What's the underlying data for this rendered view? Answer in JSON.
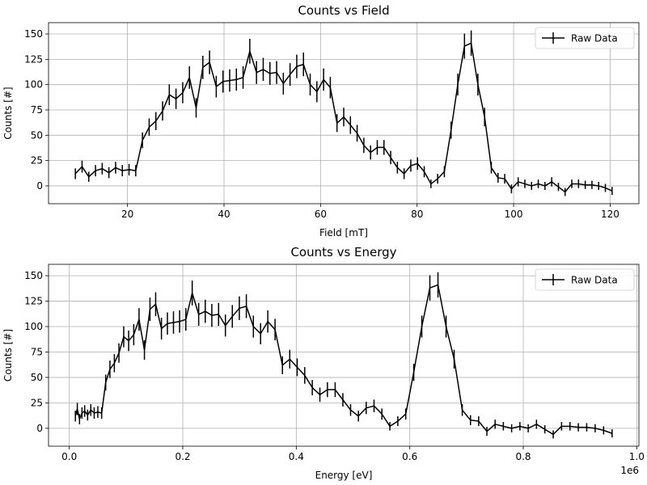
{
  "chart_data": [
    {
      "type": "errorbar",
      "title": "Counts vs Field",
      "xlabel": "Field [mT]",
      "ylabel": "Counts [#]",
      "x": [
        9.2,
        10.59,
        11.98,
        13.37,
        14.76,
        16.15,
        17.54,
        18.93,
        20.32,
        21.71,
        23.1,
        24.49,
        25.88,
        27.27,
        28.66,
        30.05,
        31.44,
        32.83,
        34.22,
        35.61,
        37.0,
        38.39,
        39.78,
        41.17,
        42.56,
        43.95,
        45.34,
        46.73,
        48.12,
        49.51,
        50.9,
        52.29,
        53.68,
        55.07,
        56.46,
        57.85,
        59.24,
        60.63,
        62.02,
        63.41,
        64.8,
        66.19,
        67.58,
        68.97,
        70.36,
        71.75,
        73.14,
        74.53,
        75.92,
        77.31,
        78.7,
        80.09,
        81.48,
        82.87,
        84.26,
        85.65,
        87.04,
        88.43,
        89.82,
        91.21,
        92.6,
        93.99,
        95.38,
        96.77,
        98.16,
        99.55,
        100.94,
        102.33,
        103.72,
        105.11,
        106.5,
        107.89,
        109.28,
        110.67,
        112.06,
        113.45,
        114.84,
        116.23,
        117.62,
        119.01,
        120.4
      ],
      "series": [
        {
          "name": "Raw Data",
          "color": "#000000",
          "values": [
            12,
            19,
            9,
            15,
            17,
            13,
            18,
            15,
            16,
            15,
            45,
            58,
            64,
            74,
            90,
            86,
            92,
            107,
            77,
            117,
            122,
            98,
            103,
            104,
            105,
            107,
            133,
            112,
            115,
            111,
            112,
            101,
            110,
            118,
            120,
            100,
            93,
            105,
            97,
            62,
            68,
            60,
            52,
            40,
            33,
            38,
            38,
            28,
            18,
            12,
            20,
            22,
            14,
            2,
            7,
            14,
            55,
            100,
            138,
            141,
            100,
            68,
            18,
            8,
            7,
            -3,
            4,
            2,
            0,
            2,
            0,
            4,
            -1,
            -6,
            2,
            2,
            1,
            1,
            0,
            -2,
            -5
          ],
          "errors": [
            5.3,
            5.9,
            5,
            5.6,
            5.7,
            5.4,
            5.8,
            5.6,
            5.7,
            5.6,
            7.8,
            8.6,
            8.9,
            9.5,
            10.3,
            10.1,
            10.4,
            11.1,
            9.6,
            11.5,
            11.7,
            10.7,
            10.9,
            11,
            11,
            11.1,
            12.2,
            11.3,
            11.4,
            11.3,
            11.3,
            10.8,
            11.2,
            11.6,
            11.7,
            10.8,
            10.4,
            11,
            10.6,
            8.8,
            9.2,
            8.7,
            8.2,
            7.5,
            7,
            7.3,
            7.3,
            6.6,
            5.8,
            5.3,
            6,
            6.2,
            5.5,
            4.2,
            4.8,
            5.5,
            8.4,
            10.8,
            12.4,
            12.5,
            10.8,
            9.2,
            5.8,
            4.9,
            4.8,
            4.4,
            4.5,
            4.2,
            4,
            4.2,
            4,
            4.5,
            4.1,
            4,
            4.2,
            4.2,
            4.1,
            4.1,
            4,
            4,
            4
          ]
        }
      ],
      "xlim": [
        3.64,
        125.96
      ],
      "xticks": [
        20,
        40,
        60,
        80,
        100,
        120
      ],
      "ylim": [
        -17.6,
        161.2
      ],
      "yticks": [
        0,
        25,
        50,
        75,
        100,
        125,
        150
      ],
      "grid": true,
      "legend": "upper right"
    },
    {
      "type": "errorbar",
      "title": "Counts vs Energy",
      "xlabel": "Energy [eV]",
      "ylabel": "Counts [#]",
      "x_offset_text": "1e6",
      "x": [
        10700,
        14130,
        18020,
        22350,
        27110,
        32300,
        37890,
        43890,
        50270,
        57020,
        64140,
        71590,
        79380,
        87490,
        95900,
        104600,
        113600,
        122900,
        132400,
        142200,
        152200,
        162400,
        172900,
        183600,
        194400,
        205400,
        216600,
        228000,
        239600,
        251200,
        263100,
        275100,
        287300,
        299600,
        312000,
        324400,
        337100,
        349800,
        362600,
        375600,
        388500,
        401600,
        414900,
        428200,
        441600,
        454900,
        468500,
        482100,
        495700,
        509500,
        523200,
        537000,
        550900,
        564900,
        578900,
        592900,
        607000,
        621200,
        635400,
        649700,
        664000,
        678200,
        692500,
        707000,
        721400,
        735900,
        750400,
        764900,
        779500,
        794100,
        808700,
        823300,
        838000,
        852800,
        867500,
        882300,
        897000,
        911800,
        926700,
        941600,
        956500
      ],
      "series": [
        {
          "name": "Raw Data",
          "color": "#000000",
          "values": [
            12,
            19,
            9,
            15,
            17,
            13,
            18,
            15,
            16,
            15,
            45,
            58,
            64,
            74,
            90,
            86,
            92,
            107,
            77,
            117,
            122,
            98,
            103,
            104,
            105,
            107,
            133,
            112,
            115,
            111,
            112,
            101,
            110,
            118,
            120,
            100,
            93,
            105,
            97,
            62,
            68,
            60,
            52,
            40,
            33,
            38,
            38,
            28,
            18,
            12,
            20,
            22,
            14,
            2,
            7,
            14,
            55,
            100,
            138,
            141,
            100,
            68,
            18,
            8,
            7,
            -3,
            4,
            2,
            0,
            2,
            0,
            4,
            -1,
            -6,
            2,
            2,
            1,
            1,
            0,
            -2,
            -5
          ],
          "errors": [
            5.3,
            5.9,
            5,
            5.6,
            5.7,
            5.4,
            5.8,
            5.6,
            5.7,
            5.6,
            7.8,
            8.6,
            8.9,
            9.5,
            10.3,
            10.1,
            10.4,
            11.1,
            9.6,
            11.5,
            11.7,
            10.7,
            10.9,
            11,
            11,
            11.1,
            12.2,
            11.3,
            11.4,
            11.3,
            11.3,
            10.8,
            11.2,
            11.6,
            11.7,
            10.8,
            10.4,
            11,
            10.6,
            8.8,
            9.2,
            8.7,
            8.2,
            7.5,
            7,
            7.3,
            7.3,
            6.6,
            5.8,
            5.3,
            6,
            6.2,
            5.5,
            4.2,
            4.8,
            5.5,
            8.4,
            10.8,
            12.4,
            12.5,
            10.8,
            9.2,
            5.8,
            4.9,
            4.8,
            4.4,
            4.5,
            4.2,
            4,
            4.2,
            4,
            4.5,
            4.1,
            4,
            4.2,
            4.2,
            4.1,
            4.1,
            4,
            4,
            4
          ]
        }
      ],
      "xlim": [
        -36600,
        1003800
      ],
      "xticks": [
        {
          "value": 0,
          "label": "0.0"
        },
        {
          "value": 200000,
          "label": "0.2"
        },
        {
          "value": 400000,
          "label": "0.4"
        },
        {
          "value": 600000,
          "label": "0.6"
        },
        {
          "value": 800000,
          "label": "0.8"
        },
        {
          "value": 1000000,
          "label": "1.0"
        }
      ],
      "ylim": [
        -17.6,
        161.2
      ],
      "yticks": [
        0,
        25,
        50,
        75,
        100,
        125,
        150
      ],
      "grid": true,
      "legend": "upper right"
    }
  ]
}
